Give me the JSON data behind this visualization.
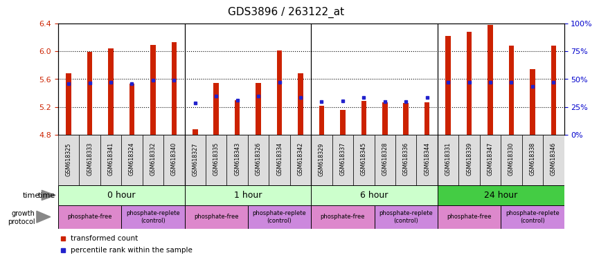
{
  "title": "GDS3896 / 263122_at",
  "samples": [
    "GSM618325",
    "GSM618333",
    "GSM618341",
    "GSM618324",
    "GSM618332",
    "GSM618340",
    "GSM618327",
    "GSM618335",
    "GSM618343",
    "GSM618326",
    "GSM618334",
    "GSM618342",
    "GSM618329",
    "GSM618337",
    "GSM618345",
    "GSM618328",
    "GSM618336",
    "GSM618344",
    "GSM618331",
    "GSM618339",
    "GSM618347",
    "GSM618330",
    "GSM618338",
    "GSM618346"
  ],
  "bar_values": [
    5.68,
    5.99,
    6.04,
    5.53,
    6.09,
    6.13,
    4.88,
    5.54,
    5.3,
    5.54,
    6.01,
    5.68,
    5.22,
    5.16,
    5.29,
    5.27,
    5.26,
    5.27,
    6.22,
    6.28,
    6.38,
    6.08,
    5.74,
    6.08
  ],
  "percentile_values": [
    5.535,
    5.545,
    5.555,
    5.535,
    5.58,
    5.58,
    5.26,
    5.355,
    5.3,
    5.355,
    5.555,
    5.335,
    5.275,
    5.285,
    5.335,
    5.275,
    5.275,
    5.335,
    5.555,
    5.555,
    5.555,
    5.555,
    5.495,
    5.555
  ],
  "ylim_left": [
    4.8,
    6.4
  ],
  "yticks_left": [
    4.8,
    5.2,
    5.6,
    6.0,
    6.4
  ],
  "yticks_right": [
    0,
    25,
    50,
    75,
    100
  ],
  "bar_color": "#cc2200",
  "dot_color": "#2222cc",
  "background_color": "#ffffff",
  "plot_bg_color": "#ffffff",
  "base_value": 4.8,
  "bar_width": 0.25,
  "time_groups": [
    {
      "label": "0 hour",
      "start": 0,
      "end": 6,
      "color": "#ccffcc"
    },
    {
      "label": "1 hour",
      "start": 6,
      "end": 12,
      "color": "#ccffcc"
    },
    {
      "label": "6 hour",
      "start": 12,
      "end": 18,
      "color": "#ccffcc"
    },
    {
      "label": "24 hour",
      "start": 18,
      "end": 24,
      "color": "#44cc44"
    }
  ],
  "protocol_groups": [
    {
      "label": "phosphate-free",
      "start": 0,
      "end": 3,
      "color": "#dd88cc"
    },
    {
      "label": "phosphate-replete\n(control)",
      "start": 3,
      "end": 6,
      "color": "#cc88dd"
    },
    {
      "label": "phosphate-free",
      "start": 6,
      "end": 9,
      "color": "#dd88cc"
    },
    {
      "label": "phosphate-replete\n(control)",
      "start": 9,
      "end": 12,
      "color": "#cc88dd"
    },
    {
      "label": "phosphate-free",
      "start": 12,
      "end": 15,
      "color": "#dd88cc"
    },
    {
      "label": "phosphate-replete\n(control)",
      "start": 15,
      "end": 18,
      "color": "#cc88dd"
    },
    {
      "label": "phosphate-free",
      "start": 18,
      "end": 21,
      "color": "#dd88cc"
    },
    {
      "label": "phosphate-replete\n(control)",
      "start": 21,
      "end": 24,
      "color": "#cc88dd"
    }
  ],
  "xticklabel_bg": "#dddddd",
  "group_sep_color": "black",
  "grid_color": "black",
  "grid_lines": [
    5.2,
    5.6,
    6.0
  ]
}
